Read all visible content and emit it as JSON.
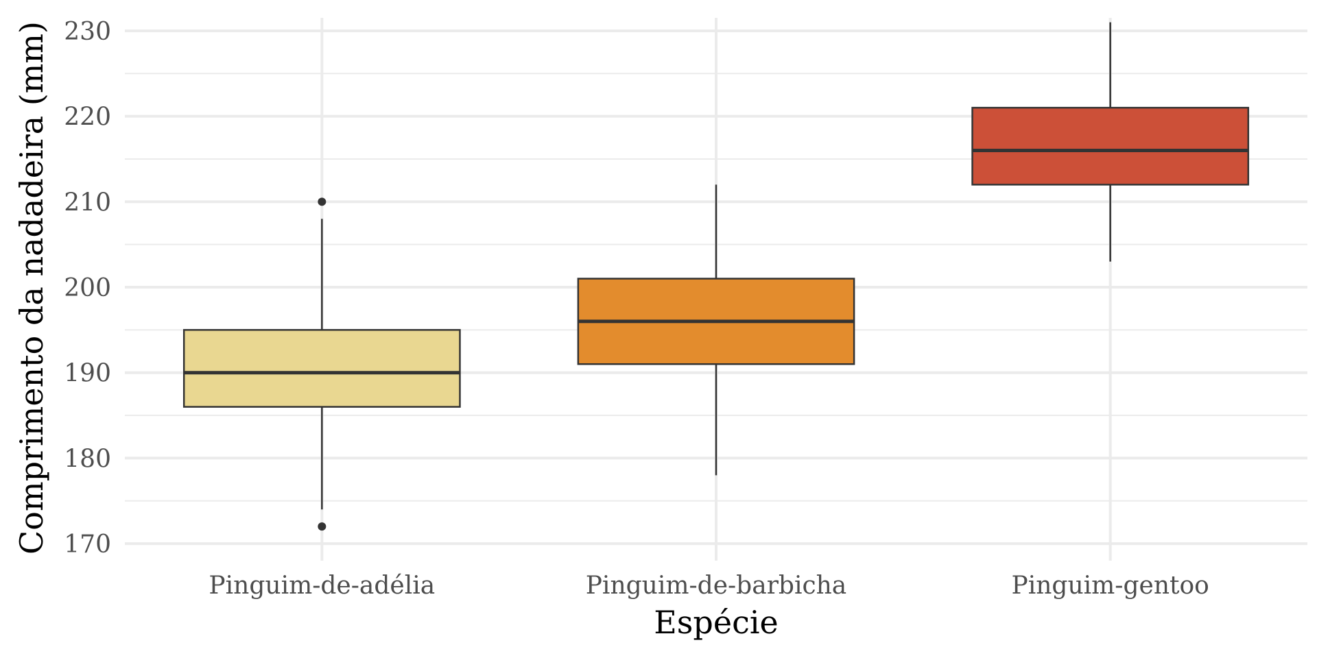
{
  "chart_data": {
    "type": "boxplot",
    "xlabel": "Espécie",
    "ylabel": "Comprimento da nadadeira (mm)",
    "categories": [
      "Pinguim-de-adélia",
      "Pinguim-de-barbicha",
      "Pinguim-gentoo"
    ],
    "ylim": [
      168,
      232
    ],
    "yticks": [
      170,
      180,
      190,
      200,
      210,
      220,
      230
    ],
    "grid": true,
    "legend": "none",
    "boxes": [
      {
        "category": "Pinguim-de-adélia",
        "lower_whisker": 174,
        "q1": 186,
        "median": 190,
        "q3": 195,
        "upper_whisker": 208,
        "outliers": [
          172,
          210
        ],
        "color": "#E9D791"
      },
      {
        "category": "Pinguim-de-barbicha",
        "lower_whisker": 178,
        "q1": 191,
        "median": 196,
        "q3": 201,
        "upper_whisker": 212,
        "outliers": [],
        "color": "#E38C2D"
      },
      {
        "category": "Pinguim-gentoo",
        "lower_whisker": 203,
        "q1": 212,
        "median": 216,
        "q3": 221,
        "upper_whisker": 231,
        "outliers": [],
        "color": "#CC5038"
      }
    ],
    "colors": {
      "grid": "#EBEBEB",
      "outline": "#333333"
    }
  }
}
